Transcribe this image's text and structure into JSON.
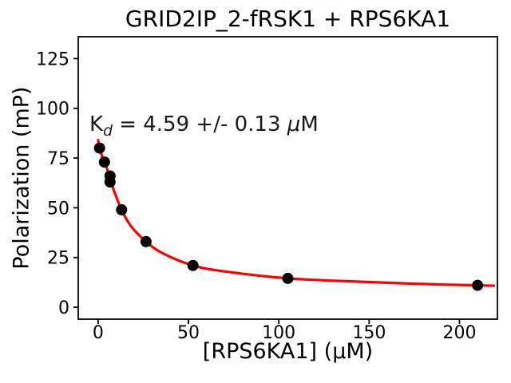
{
  "figure": {
    "title": "GRID2IP_2-fRSK1 + RPS6KA1",
    "xlabel": "[RPS6KA1] (μM)",
    "ylabel": "Polarization (mP)",
    "annotation": {
      "k": "K",
      "sub": "d",
      "mid": " = 4.59 +/- 0.13 ",
      "mu": "μ",
      "suffix": "M"
    }
  },
  "chart_data": {
    "type": "scatter",
    "title": "GRID2IP_2-fRSK1 + RPS6KA1",
    "xlabel": "[RPS6KA1] (μM)",
    "ylabel": "Polarization (mP)",
    "annotation": "K_d = 4.59 +/- 0.13 μM",
    "kd_um": 4.59,
    "kd_error_um": 0.13,
    "xlim": [
      -11,
      221
    ],
    "ylim": [
      -6,
      136
    ],
    "x_ticks": [
      0,
      50,
      100,
      150,
      200
    ],
    "y_ticks": [
      0,
      25,
      50,
      75,
      100,
      125
    ],
    "grid": false,
    "legend": false,
    "series": [
      {
        "name": "measured data",
        "type": "scatter",
        "color": "#000000",
        "points": [
          [
            0.8,
            80
          ],
          [
            3.5,
            73
          ],
          [
            6.6,
            66
          ],
          [
            6.6,
            63
          ],
          [
            13,
            49
          ],
          [
            26.5,
            33
          ],
          [
            52.5,
            21
          ],
          [
            105,
            14.5
          ],
          [
            210,
            11
          ]
        ]
      },
      {
        "name": "binding fit",
        "type": "line",
        "color": "#ff0000",
        "points": [
          [
            0,
            84
          ],
          [
            0.8,
            80
          ],
          [
            2,
            76.5
          ],
          [
            3.5,
            73
          ],
          [
            5,
            69.5
          ],
          [
            6.6,
            65
          ],
          [
            9,
            58
          ],
          [
            13,
            49
          ],
          [
            18,
            41
          ],
          [
            26.5,
            33
          ],
          [
            36,
            27
          ],
          [
            52.5,
            21
          ],
          [
            70,
            18
          ],
          [
            105,
            14.5
          ],
          [
            140,
            13
          ],
          [
            175,
            11.8
          ],
          [
            210,
            11
          ],
          [
            219,
            10.8
          ]
        ]
      }
    ]
  },
  "colors": {
    "fit_line": "#ff0000",
    "data_points": "#000000",
    "axes": "#000000",
    "background": "#ffffff"
  }
}
